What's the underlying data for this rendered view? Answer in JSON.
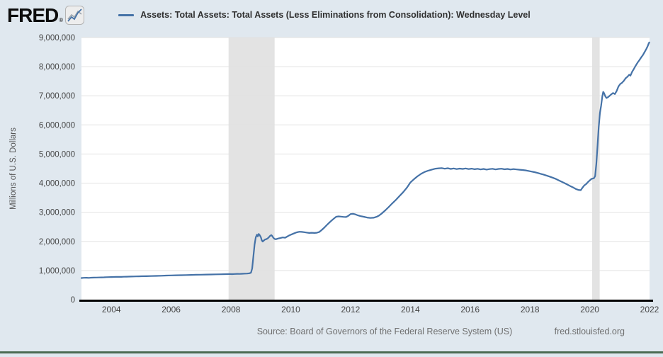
{
  "header": {
    "logo_text": "FRED",
    "logo_registered": "®",
    "series_title": "Assets: Total Assets: Total Assets (Less Eliminations from Consolidation): Wednesday Level"
  },
  "footer": {
    "source_text": "Source: Board of Governors of the Federal Reserve System (US)",
    "site_link": "fred.stlouisfed.org"
  },
  "colors": {
    "page_bg": "#e0e8ef",
    "plot_bg": "#ffffff",
    "line": "#4572a7",
    "gridline": "#e2e2e2",
    "recession_band": "#e3e3e3",
    "axis_line": "#000000",
    "tick_text": "#444444",
    "y_axis_title_text": "#555555",
    "footer_text": "#6f6f6f",
    "bottom_bar": "#4a6a52"
  },
  "chart_data": {
    "type": "line",
    "title": "Assets: Total Assets: Total Assets (Less Eliminations from Consolidation): Wednesday Level",
    "xlabel": "",
    "ylabel": "Millions of U.S. Dollars",
    "x_range": [
      2003.0,
      2022.0
    ],
    "ylim": [
      0,
      9000000
    ],
    "grid": "horizontal",
    "legend_position": "top-left-header",
    "y_ticks": [
      {
        "value": 0,
        "label": "0"
      },
      {
        "value": 1000000,
        "label": "1,000,000"
      },
      {
        "value": 2000000,
        "label": "2,000,000"
      },
      {
        "value": 3000000,
        "label": "3,000,000"
      },
      {
        "value": 4000000,
        "label": "4,000,000"
      },
      {
        "value": 5000000,
        "label": "5,000,000"
      },
      {
        "value": 6000000,
        "label": "6,000,000"
      },
      {
        "value": 7000000,
        "label": "7,000,000"
      },
      {
        "value": 8000000,
        "label": "8,000,000"
      },
      {
        "value": 9000000,
        "label": "9,000,000"
      }
    ],
    "x_ticks": [
      {
        "value": 2004,
        "label": "2004"
      },
      {
        "value": 2006,
        "label": "2006"
      },
      {
        "value": 2008,
        "label": "2008"
      },
      {
        "value": 2010,
        "label": "2010"
      },
      {
        "value": 2012,
        "label": "2012"
      },
      {
        "value": 2014,
        "label": "2014"
      },
      {
        "value": 2016,
        "label": "2016"
      },
      {
        "value": 2018,
        "label": "2018"
      },
      {
        "value": 2020,
        "label": "2020"
      },
      {
        "value": 2022,
        "label": "2022"
      }
    ],
    "recession_bands": [
      {
        "start": 2007.92,
        "end": 2009.46
      },
      {
        "start": 2020.08,
        "end": 2020.33
      }
    ],
    "series": [
      {
        "name": "Assets: Total Assets: Total Assets (Less Eliminations from Consolidation): Wednesday Level",
        "color": "#4572a7",
        "points": [
          [
            2003.0,
            742000
          ],
          [
            2003.08,
            748000
          ],
          [
            2003.17,
            751000
          ],
          [
            2003.25,
            747000
          ],
          [
            2003.33,
            753000
          ],
          [
            2003.42,
            756000
          ],
          [
            2003.5,
            758000
          ],
          [
            2003.58,
            762000
          ],
          [
            2003.67,
            764000
          ],
          [
            2003.75,
            767000
          ],
          [
            2003.83,
            770000
          ],
          [
            2003.92,
            773000
          ],
          [
            2004.0,
            775000
          ],
          [
            2004.08,
            778000
          ],
          [
            2004.17,
            780000
          ],
          [
            2004.25,
            783000
          ],
          [
            2004.33,
            782000
          ],
          [
            2004.42,
            786000
          ],
          [
            2004.5,
            788000
          ],
          [
            2004.58,
            790000
          ],
          [
            2004.67,
            793000
          ],
          [
            2004.75,
            795000
          ],
          [
            2004.83,
            798000
          ],
          [
            2004.92,
            800000
          ],
          [
            2005.0,
            802000
          ],
          [
            2005.17,
            806000
          ],
          [
            2005.33,
            810000
          ],
          [
            2005.5,
            815000
          ],
          [
            2005.67,
            820000
          ],
          [
            2005.83,
            826000
          ],
          [
            2006.0,
            831000
          ],
          [
            2006.17,
            836000
          ],
          [
            2006.33,
            840000
          ],
          [
            2006.5,
            845000
          ],
          [
            2006.67,
            849000
          ],
          [
            2006.83,
            853000
          ],
          [
            2007.0,
            857000
          ],
          [
            2007.17,
            861000
          ],
          [
            2007.33,
            864000
          ],
          [
            2007.5,
            868000
          ],
          [
            2007.67,
            872000
          ],
          [
            2007.83,
            876000
          ],
          [
            2007.95,
            881000
          ],
          [
            2008.04,
            875000
          ],
          [
            2008.12,
            880000
          ],
          [
            2008.21,
            885000
          ],
          [
            2008.29,
            883000
          ],
          [
            2008.37,
            888000
          ],
          [
            2008.46,
            892000
          ],
          [
            2008.54,
            896000
          ],
          [
            2008.62,
            905000
          ],
          [
            2008.67,
            925000
          ],
          [
            2008.71,
            1070000
          ],
          [
            2008.75,
            1480000
          ],
          [
            2008.79,
            1890000
          ],
          [
            2008.83,
            2140000
          ],
          [
            2008.87,
            2230000
          ],
          [
            2008.9,
            2170000
          ],
          [
            2008.93,
            2255000
          ],
          [
            2008.96,
            2215000
          ],
          [
            2009.0,
            2140000
          ],
          [
            2009.03,
            2040000
          ],
          [
            2009.06,
            1995000
          ],
          [
            2009.1,
            2030000
          ],
          [
            2009.14,
            2065000
          ],
          [
            2009.18,
            2075000
          ],
          [
            2009.23,
            2105000
          ],
          [
            2009.27,
            2145000
          ],
          [
            2009.31,
            2190000
          ],
          [
            2009.35,
            2215000
          ],
          [
            2009.38,
            2185000
          ],
          [
            2009.42,
            2120000
          ],
          [
            2009.46,
            2085000
          ],
          [
            2009.5,
            2072000
          ],
          [
            2009.58,
            2100000
          ],
          [
            2009.65,
            2115000
          ],
          [
            2009.73,
            2135000
          ],
          [
            2009.81,
            2125000
          ],
          [
            2009.88,
            2165000
          ],
          [
            2009.96,
            2210000
          ],
          [
            2010.04,
            2245000
          ],
          [
            2010.12,
            2280000
          ],
          [
            2010.2,
            2310000
          ],
          [
            2010.29,
            2330000
          ],
          [
            2010.37,
            2325000
          ],
          [
            2010.45,
            2315000
          ],
          [
            2010.54,
            2300000
          ],
          [
            2010.62,
            2290000
          ],
          [
            2010.7,
            2295000
          ],
          [
            2010.79,
            2288000
          ],
          [
            2010.87,
            2295000
          ],
          [
            2010.95,
            2320000
          ],
          [
            2011.04,
            2395000
          ],
          [
            2011.12,
            2470000
          ],
          [
            2011.2,
            2555000
          ],
          [
            2011.29,
            2645000
          ],
          [
            2011.37,
            2720000
          ],
          [
            2011.45,
            2790000
          ],
          [
            2011.52,
            2845000
          ],
          [
            2011.6,
            2858000
          ],
          [
            2011.68,
            2850000
          ],
          [
            2011.76,
            2842000
          ],
          [
            2011.85,
            2835000
          ],
          [
            2011.92,
            2872000
          ],
          [
            2012.0,
            2938000
          ],
          [
            2012.08,
            2948000
          ],
          [
            2012.16,
            2928000
          ],
          [
            2012.25,
            2892000
          ],
          [
            2012.33,
            2868000
          ],
          [
            2012.44,
            2845000
          ],
          [
            2012.55,
            2820000
          ],
          [
            2012.66,
            2805000
          ],
          [
            2012.77,
            2812000
          ],
          [
            2012.87,
            2843000
          ],
          [
            2012.95,
            2885000
          ],
          [
            2013.04,
            2955000
          ],
          [
            2013.16,
            3065000
          ],
          [
            2013.28,
            3185000
          ],
          [
            2013.4,
            3310000
          ],
          [
            2013.52,
            3430000
          ],
          [
            2013.64,
            3560000
          ],
          [
            2013.76,
            3690000
          ],
          [
            2013.88,
            3840000
          ],
          [
            2014.0,
            4020000
          ],
          [
            2014.12,
            4135000
          ],
          [
            2014.24,
            4235000
          ],
          [
            2014.36,
            4320000
          ],
          [
            2014.48,
            4385000
          ],
          [
            2014.6,
            4430000
          ],
          [
            2014.72,
            4465000
          ],
          [
            2014.84,
            4498000
          ],
          [
            2014.95,
            4510000
          ],
          [
            2015.05,
            4516000
          ],
          [
            2015.15,
            4495000
          ],
          [
            2015.25,
            4512000
          ],
          [
            2015.35,
            4488000
          ],
          [
            2015.45,
            4505000
          ],
          [
            2015.55,
            4482000
          ],
          [
            2015.65,
            4500000
          ],
          [
            2015.75,
            4488000
          ],
          [
            2015.85,
            4505000
          ],
          [
            2015.95,
            4482000
          ],
          [
            2016.05,
            4498000
          ],
          [
            2016.15,
            4478000
          ],
          [
            2016.25,
            4492000
          ],
          [
            2016.35,
            4470000
          ],
          [
            2016.45,
            4488000
          ],
          [
            2016.55,
            4465000
          ],
          [
            2016.65,
            4482000
          ],
          [
            2016.75,
            4492000
          ],
          [
            2016.85,
            4470000
          ],
          [
            2016.95,
            4488000
          ],
          [
            2017.05,
            4495000
          ],
          [
            2017.15,
            4475000
          ],
          [
            2017.25,
            4488000
          ],
          [
            2017.35,
            4468000
          ],
          [
            2017.45,
            4482000
          ],
          [
            2017.55,
            4472000
          ],
          [
            2017.65,
            4460000
          ],
          [
            2017.75,
            4452000
          ],
          [
            2017.85,
            4438000
          ],
          [
            2017.95,
            4420000
          ],
          [
            2018.05,
            4398000
          ],
          [
            2018.15,
            4378000
          ],
          [
            2018.25,
            4352000
          ],
          [
            2018.35,
            4322000
          ],
          [
            2018.45,
            4295000
          ],
          [
            2018.55,
            4262000
          ],
          [
            2018.65,
            4228000
          ],
          [
            2018.75,
            4192000
          ],
          [
            2018.85,
            4152000
          ],
          [
            2018.95,
            4102000
          ],
          [
            2019.05,
            4052000
          ],
          [
            2019.15,
            4005000
          ],
          [
            2019.25,
            3952000
          ],
          [
            2019.35,
            3898000
          ],
          [
            2019.45,
            3848000
          ],
          [
            2019.55,
            3792000
          ],
          [
            2019.62,
            3768000
          ],
          [
            2019.7,
            3758000
          ],
          [
            2019.76,
            3845000
          ],
          [
            2019.82,
            3925000
          ],
          [
            2019.88,
            3968000
          ],
          [
            2019.94,
            4035000
          ],
          [
            2020.0,
            4095000
          ],
          [
            2020.06,
            4148000
          ],
          [
            2020.1,
            4158000
          ],
          [
            2020.14,
            4168000
          ],
          [
            2020.18,
            4242000
          ],
          [
            2020.22,
            4668000
          ],
          [
            2020.26,
            5285000
          ],
          [
            2020.3,
            5905000
          ],
          [
            2020.34,
            6395000
          ],
          [
            2020.38,
            6655000
          ],
          [
            2020.42,
            6975000
          ],
          [
            2020.45,
            7135000
          ],
          [
            2020.48,
            7090000
          ],
          [
            2020.52,
            6985000
          ],
          [
            2020.56,
            6922000
          ],
          [
            2020.62,
            6958000
          ],
          [
            2020.7,
            7032000
          ],
          [
            2020.78,
            7095000
          ],
          [
            2020.84,
            7060000
          ],
          [
            2020.9,
            7165000
          ],
          [
            2020.96,
            7318000
          ],
          [
            2021.02,
            7405000
          ],
          [
            2021.08,
            7448000
          ],
          [
            2021.14,
            7515000
          ],
          [
            2021.2,
            7602000
          ],
          [
            2021.26,
            7655000
          ],
          [
            2021.32,
            7722000
          ],
          [
            2021.36,
            7692000
          ],
          [
            2021.42,
            7828000
          ],
          [
            2021.48,
            7932000
          ],
          [
            2021.54,
            8042000
          ],
          [
            2021.6,
            8138000
          ],
          [
            2021.66,
            8222000
          ],
          [
            2021.72,
            8318000
          ],
          [
            2021.78,
            8402000
          ],
          [
            2021.84,
            8508000
          ],
          [
            2021.9,
            8622000
          ],
          [
            2021.94,
            8712000
          ],
          [
            2021.97,
            8788000
          ],
          [
            2021.99,
            8832000
          ]
        ]
      }
    ]
  }
}
